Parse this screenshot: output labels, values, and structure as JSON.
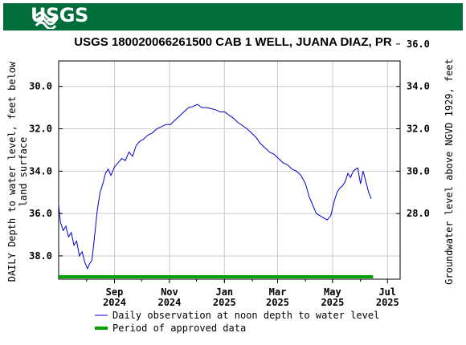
{
  "header": {
    "logo_text": "USGS",
    "title": "USGS 180020066261500 CAB 1 WELL, JUANA DIAZ, PR"
  },
  "colors": {
    "banner": "#006d3a",
    "series_line": "#0000cc",
    "approved_bar": "#00a000",
    "grid": "#cccccc"
  },
  "chart_data": {
    "type": "line",
    "title": "USGS 180020066261500 CAB 1 WELL, JUANA DIAZ, PR",
    "ylabel_left": "DAILY Depth to water level, feet below land surface",
    "ylabel_left_lines": [
      "DAILY Depth to water level, feet below",
      "land surface"
    ],
    "ylabel_right": "Groundwater level above NGVD 1929, feet",
    "y_left_range": [
      39.1,
      28.8
    ],
    "y_left_ticks": [
      "30.0",
      "32.0",
      "34.0",
      "36.0",
      "38.0"
    ],
    "y_right_ticks": [
      "36.0",
      "34.0",
      "32.0",
      "30.0",
      "28.0"
    ],
    "x_range": [
      "2024-07-01",
      "2025-07-15"
    ],
    "x_ticks": [
      {
        "date": "2024-09-01",
        "month": "Sep",
        "year": "2024"
      },
      {
        "date": "2024-11-01",
        "month": "Nov",
        "year": "2024"
      },
      {
        "date": "2025-01-01",
        "month": "Jan",
        "year": "2025"
      },
      {
        "date": "2025-03-01",
        "month": "Mar",
        "year": "2025"
      },
      {
        "date": "2025-05-01",
        "month": "May",
        "year": "2025"
      },
      {
        "date": "2025-07-01",
        "month": "Jul",
        "year": "2025"
      }
    ],
    "grid": true,
    "legend_position": "bottom",
    "legend": [
      {
        "label": "Daily observation at noon depth to water level",
        "kind": "line"
      },
      {
        "label": "Period of approved data",
        "kind": "bar"
      }
    ],
    "approved_period": [
      "2024-07-01",
      "2025-06-15"
    ],
    "series": [
      {
        "name": "Daily observation at noon depth to water level",
        "points": [
          [
            "2024-07-01",
            35.6
          ],
          [
            "2024-07-03",
            36.4
          ],
          [
            "2024-07-06",
            36.8
          ],
          [
            "2024-07-09",
            36.6
          ],
          [
            "2024-07-12",
            37.1
          ],
          [
            "2024-07-15",
            36.9
          ],
          [
            "2024-07-18",
            37.5
          ],
          [
            "2024-07-21",
            37.3
          ],
          [
            "2024-07-24",
            38.0
          ],
          [
            "2024-07-27",
            37.8
          ],
          [
            "2024-07-30",
            38.3
          ],
          [
            "2024-08-02",
            38.6
          ],
          [
            "2024-08-04",
            38.4
          ],
          [
            "2024-08-07",
            38.2
          ],
          [
            "2024-08-10",
            37.0
          ],
          [
            "2024-08-13",
            35.8
          ],
          [
            "2024-08-16",
            35.0
          ],
          [
            "2024-08-19",
            34.6
          ],
          [
            "2024-08-22",
            34.1
          ],
          [
            "2024-08-25",
            33.9
          ],
          [
            "2024-08-28",
            34.2
          ],
          [
            "2024-09-01",
            33.8
          ],
          [
            "2024-09-05",
            33.6
          ],
          [
            "2024-09-09",
            33.4
          ],
          [
            "2024-09-13",
            33.5
          ],
          [
            "2024-09-17",
            33.1
          ],
          [
            "2024-09-21",
            33.3
          ],
          [
            "2024-09-25",
            32.8
          ],
          [
            "2024-09-29",
            32.6
          ],
          [
            "2024-10-03",
            32.5
          ],
          [
            "2024-10-08",
            32.3
          ],
          [
            "2024-10-13",
            32.2
          ],
          [
            "2024-10-18",
            32.0
          ],
          [
            "2024-10-23",
            31.9
          ],
          [
            "2024-10-28",
            31.8
          ],
          [
            "2024-11-02",
            31.8
          ],
          [
            "2024-11-07",
            31.6
          ],
          [
            "2024-11-12",
            31.4
          ],
          [
            "2024-11-17",
            31.2
          ],
          [
            "2024-11-22",
            31.0
          ],
          [
            "2024-11-27",
            30.95
          ],
          [
            "2024-12-02",
            30.85
          ],
          [
            "2024-12-07",
            31.0
          ],
          [
            "2024-12-12",
            31.0
          ],
          [
            "2024-12-17",
            31.05
          ],
          [
            "2024-12-22",
            31.1
          ],
          [
            "2024-12-27",
            31.2
          ],
          [
            "2025-01-01",
            31.2
          ],
          [
            "2025-01-06",
            31.35
          ],
          [
            "2025-01-11",
            31.5
          ],
          [
            "2025-01-16",
            31.7
          ],
          [
            "2025-01-21",
            31.85
          ],
          [
            "2025-01-26",
            32.0
          ],
          [
            "2025-01-31",
            32.2
          ],
          [
            "2025-02-05",
            32.4
          ],
          [
            "2025-02-10",
            32.7
          ],
          [
            "2025-02-15",
            32.9
          ],
          [
            "2025-02-20",
            33.1
          ],
          [
            "2025-02-25",
            33.2
          ],
          [
            "2025-03-02",
            33.4
          ],
          [
            "2025-03-07",
            33.6
          ],
          [
            "2025-03-12",
            33.7
          ],
          [
            "2025-03-17",
            33.9
          ],
          [
            "2025-03-22",
            34.0
          ],
          [
            "2025-03-27",
            34.2
          ],
          [
            "2025-04-01",
            34.6
          ],
          [
            "2025-04-05",
            35.2
          ],
          [
            "2025-04-09",
            35.6
          ],
          [
            "2025-04-13",
            36.0
          ],
          [
            "2025-04-17",
            36.1
          ],
          [
            "2025-04-21",
            36.2
          ],
          [
            "2025-04-25",
            36.3
          ],
          [
            "2025-04-29",
            36.1
          ],
          [
            "2025-05-03",
            35.4
          ],
          [
            "2025-05-06",
            35.0
          ],
          [
            "2025-05-09",
            34.8
          ],
          [
            "2025-05-12",
            34.7
          ],
          [
            "2025-05-15",
            34.5
          ],
          [
            "2025-05-18",
            34.1
          ],
          [
            "2025-05-21",
            34.3
          ],
          [
            "2025-05-24",
            34.0
          ],
          [
            "2025-05-27",
            33.9
          ],
          [
            "2025-05-29",
            33.85
          ],
          [
            "2025-06-01",
            34.6
          ],
          [
            "2025-06-04",
            34.0
          ],
          [
            "2025-06-07",
            34.5
          ],
          [
            "2025-06-10",
            35.0
          ],
          [
            "2025-06-13",
            35.3
          ]
        ]
      }
    ]
  }
}
